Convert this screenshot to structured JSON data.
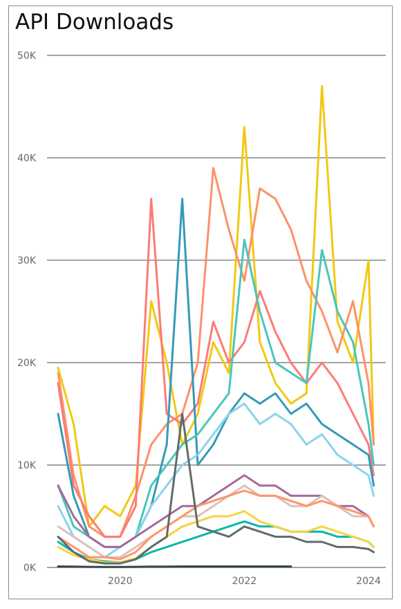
{
  "chart_data": {
    "type": "line",
    "title": "API Downloads",
    "xlabel": "",
    "ylabel": "",
    "x_range": [
      "2019-01",
      "2024-03"
    ],
    "ylim": [
      0,
      50000
    ],
    "y_ticks": [
      0,
      10000,
      20000,
      30000,
      40000,
      50000
    ],
    "y_tick_labels": [
      "0K",
      "10K",
      "20K",
      "30K",
      "40K",
      "50K"
    ],
    "x_ticks": [
      "2020-01",
      "2022-01",
      "2024-01"
    ],
    "x_tick_labels": [
      "2020",
      "2022",
      "2024"
    ],
    "grid": "horizontal",
    "legend": "none",
    "x": [
      "2019-01",
      "2019-04",
      "2019-07",
      "2019-10",
      "2020-01",
      "2020-04",
      "2020-07",
      "2020-10",
      "2021-01",
      "2021-04",
      "2021-07",
      "2021-10",
      "2022-01",
      "2022-04",
      "2022-07",
      "2022-10",
      "2023-01",
      "2023-04",
      "2023-07",
      "2023-10",
      "2024-01",
      "2024-02"
    ],
    "series": [
      {
        "color": "#F2C811",
        "values": [
          19500,
          14000,
          4000,
          6000,
          5000,
          8000,
          26000,
          20000,
          12000,
          15000,
          22000,
          19000,
          43000,
          22000,
          18000,
          16000,
          17000,
          47000,
          24000,
          20000,
          30000,
          12000
        ]
      },
      {
        "color": "#FD9168",
        "values": [
          19000,
          9000,
          4000,
          3000,
          3000,
          7000,
          12000,
          14000,
          15000,
          20000,
          39000,
          33000,
          28000,
          37000,
          36000,
          33000,
          28000,
          25000,
          21000,
          26000,
          18000,
          12000
        ]
      },
      {
        "color": "#FD7B74",
        "values": [
          18000,
          8000,
          5000,
          3000,
          3000,
          6000,
          36000,
          15000,
          14000,
          16000,
          24000,
          20000,
          22000,
          27000,
          23000,
          20000,
          18000,
          20000,
          18000,
          15000,
          12000,
          9000
        ]
      },
      {
        "color": "#3599B8",
        "values": [
          15000,
          7000,
          3000,
          2000,
          2000,
          3000,
          6000,
          12000,
          36000,
          10000,
          12000,
          15000,
          17000,
          16000,
          17000,
          15000,
          16000,
          14000,
          13000,
          12000,
          11000,
          8000
        ]
      },
      {
        "color": "#4AC5BB",
        "values": [
          8000,
          4000,
          3000,
          2000,
          2000,
          3000,
          8000,
          10000,
          12000,
          13000,
          15000,
          17000,
          32000,
          25000,
          20000,
          19000,
          18000,
          31000,
          25000,
          22000,
          14000,
          10000
        ]
      },
      {
        "color": "#8AD4EB",
        "values": [
          6000,
          3000,
          2000,
          1000,
          2000,
          3000,
          6000,
          8000,
          10000,
          11000,
          13000,
          15000,
          16000,
          14000,
          15000,
          14000,
          12000,
          13000,
          11000,
          10000,
          9000,
          7000
        ]
      },
      {
        "color": "#A66999",
        "values": [
          8000,
          5000,
          3000,
          2000,
          2000,
          3000,
          4000,
          5000,
          6000,
          6000,
          7000,
          8000,
          9000,
          8000,
          8000,
          7000,
          7000,
          7000,
          6000,
          6000,
          5000,
          4000
        ]
      },
      {
        "color": "#DFBFBF",
        "values": [
          4000,
          3000,
          2000,
          1000,
          1000,
          2000,
          3000,
          4000,
          5000,
          5000,
          6000,
          7000,
          8000,
          7000,
          7000,
          6000,
          6000,
          7000,
          6000,
          5000,
          5000,
          4000
        ]
      },
      {
        "color": "#01B8AA",
        "values": [
          2500,
          1500,
          800,
          600,
          500,
          800,
          1500,
          2000,
          2500,
          3000,
          3500,
          4000,
          4500,
          4000,
          4000,
          3500,
          3500,
          3500,
          3000,
          3000,
          2500,
          2000
        ]
      },
      {
        "color": "#FE9666",
        "values": [
          3000,
          2000,
          1000,
          1000,
          800,
          1500,
          3000,
          4000,
          5000,
          6000,
          6500,
          7000,
          7500,
          7000,
          7000,
          6500,
          6000,
          6500,
          6000,
          5500,
          5000,
          4000
        ]
      },
      {
        "color": "#F5D33F",
        "values": [
          2000,
          1200,
          800,
          500,
          500,
          900,
          2000,
          3000,
          4000,
          4500,
          5000,
          5000,
          5500,
          4500,
          4000,
          3500,
          3500,
          4000,
          3500,
          3000,
          2500,
          2000
        ]
      },
      {
        "color": "#5F6B6D",
        "values": [
          3000,
          1500,
          600,
          400,
          400,
          800,
          2000,
          3000,
          15000,
          4000,
          3500,
          3000,
          4000,
          3500,
          3000,
          3000,
          2500,
          2500,
          2000,
          2000,
          1800,
          1500
        ]
      },
      {
        "color": "#374649",
        "values": [
          100,
          80,
          60,
          50,
          50,
          60,
          80,
          90,
          100,
          100,
          100,
          100,
          100,
          100,
          100,
          100,
          null,
          null,
          null,
          null,
          null,
          null
        ]
      }
    ]
  }
}
